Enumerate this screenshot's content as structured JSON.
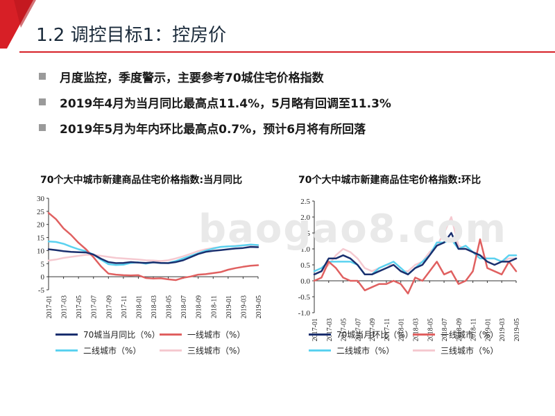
{
  "slide": {
    "title": "1.2 调控目标1：控房价",
    "accent_color": "#d71f26",
    "bullets": [
      "月度监控，季度警示，主要参考70城住宅价格指数",
      "2019年4月为当月同比最高点11.4%，5月略有回调至11.3%",
      "2019年5月为年内环比最高点0.7%，预计6月将有所回落"
    ],
    "watermark": "baogao8.com"
  },
  "chart_data": [
    {
      "type": "line",
      "title": "70个大中城市新建商品住宅价格指数:当月同比",
      "x": [
        "2017-01",
        "2017-02",
        "2017-03",
        "2017-04",
        "2017-05",
        "2017-06",
        "2017-07",
        "2017-08",
        "2017-09",
        "2017-10",
        "2017-11",
        "2017-12",
        "2018-01",
        "2018-02",
        "2018-03",
        "2018-04",
        "2018-05",
        "2018-06",
        "2018-07",
        "2018-08",
        "2018-09",
        "2018-10",
        "2018-11",
        "2018-12",
        "2019-01",
        "2019-02",
        "2019-03",
        "2019-04",
        "2019-05"
      ],
      "tick_labels": [
        "2017-01",
        "2017-03",
        "2017-05",
        "2017-07",
        "2017-09",
        "2017-11",
        "2018-01",
        "2018-03",
        "2018-05",
        "2018-07",
        "2018-09",
        "2018-11",
        "2019-01",
        "2019-03",
        "2019-05"
      ],
      "ylim": [
        -5,
        30
      ],
      "yticks": [
        -5,
        0,
        5,
        10,
        15,
        20,
        25,
        30
      ],
      "series": [
        {
          "name": "70城当月同比（%）",
          "color": "#1a2f6e",
          "values": [
            10.5,
            10.2,
            9.8,
            9.5,
            9.4,
            9.3,
            8.5,
            6.9,
            5.6,
            5.2,
            5.3,
            5.6,
            5.4,
            5.3,
            5.5,
            5.3,
            5.2,
            5.6,
            6.3,
            7.5,
            8.7,
            9.5,
            9.9,
            10.2,
            10.5,
            10.8,
            11.0,
            11.4,
            11.3
          ]
        },
        {
          "name": "一线城市（%）",
          "color": "#e06060",
          "values": [
            24.4,
            22.0,
            18.5,
            16.0,
            13.0,
            10.5,
            7.5,
            4.0,
            1.2,
            0.8,
            0.6,
            0.5,
            0.6,
            -0.5,
            -0.7,
            -0.6,
            -1.0,
            -1.3,
            -0.4,
            0.1,
            0.8,
            1.0,
            1.4,
            1.8,
            2.7,
            3.3,
            3.8,
            4.2,
            4.4
          ]
        },
        {
          "name": "二线城市（%）",
          "color": "#5bd2f0",
          "values": [
            13.5,
            13.3,
            12.6,
            11.5,
            10.5,
            9.8,
            8.5,
            6.5,
            4.8,
            4.5,
            4.6,
            5.3,
            5.5,
            5.0,
            5.5,
            5.2,
            5.3,
            6.0,
            7.0,
            8.0,
            9.0,
            10.0,
            10.8,
            11.4,
            11.6,
            11.7,
            12.0,
            12.3,
            12.1
          ]
        },
        {
          "name": "三线城市（%）",
          "color": "#f5c9d0",
          "values": [
            6.2,
            6.6,
            7.2,
            7.6,
            8.0,
            8.4,
            8.4,
            8.0,
            7.6,
            7.2,
            7.0,
            6.8,
            6.6,
            6.3,
            6.2,
            6.0,
            6.3,
            7.0,
            7.8,
            8.8,
            9.8,
            10.5,
            11.0,
            11.4,
            11.6,
            11.8,
            12.0,
            12.0,
            11.8
          ]
        }
      ]
    },
    {
      "type": "line",
      "title": "70个大中城市新建商品住宅价格指数:环比",
      "x": [
        "2017-01",
        "2017-02",
        "2017-03",
        "2017-04",
        "2017-05",
        "2017-06",
        "2017-07",
        "2017-08",
        "2017-09",
        "2017-10",
        "2017-11",
        "2017-12",
        "2018-01",
        "2018-02",
        "2018-03",
        "2018-04",
        "2018-05",
        "2018-06",
        "2018-07",
        "2018-08",
        "2018-09",
        "2018-10",
        "2018-11",
        "2018-12",
        "2019-01",
        "2019-02",
        "2019-03",
        "2019-04",
        "2019-05"
      ],
      "tick_labels": [
        "2017-01",
        "2017-03",
        "2017-05",
        "2017-07",
        "2017-09",
        "2017-11",
        "2018-01",
        "2018-03",
        "2018-05",
        "2018-07",
        "2018-09",
        "2018-11",
        "2019-01",
        "2019-03",
        "2019-05"
      ],
      "ylim": [
        -1.0,
        2.5
      ],
      "yticks": [
        -1.0,
        -0.5,
        0.0,
        0.5,
        1.0,
        1.5,
        2.0,
        2.5
      ],
      "series": [
        {
          "name": "70城当月环比（%）",
          "color": "#1a2f6e",
          "values": [
            0.2,
            0.3,
            0.7,
            0.7,
            0.8,
            0.7,
            0.5,
            0.2,
            0.2,
            0.3,
            0.4,
            0.5,
            0.3,
            0.2,
            0.4,
            0.5,
            0.8,
            1.1,
            1.2,
            1.5,
            1.0,
            1.0,
            0.9,
            0.8,
            0.6,
            0.5,
            0.6,
            0.6,
            0.7
          ]
        },
        {
          "name": "一线城市（%）",
          "color": "#e06060",
          "values": [
            0.0,
            0.1,
            0.6,
            0.4,
            0.1,
            0.0,
            0.0,
            -0.3,
            -0.2,
            -0.1,
            -0.1,
            0.0,
            -0.1,
            -0.4,
            0.1,
            0.0,
            0.3,
            0.6,
            0.2,
            0.3,
            -0.1,
            0.0,
            0.3,
            1.3,
            0.4,
            0.3,
            0.2,
            0.6,
            0.3
          ]
        },
        {
          "name": "二线城市（%）",
          "color": "#5bd2f0",
          "values": [
            0.3,
            0.4,
            0.6,
            0.6,
            0.6,
            0.6,
            0.5,
            0.2,
            0.2,
            0.4,
            0.5,
            0.6,
            0.4,
            0.2,
            0.4,
            0.6,
            0.8,
            1.2,
            1.2,
            1.3,
            1.0,
            1.1,
            0.9,
            0.7,
            0.7,
            0.7,
            0.6,
            0.8,
            0.8
          ]
        },
        {
          "name": "三线城市（%）",
          "color": "#f5c9d0",
          "values": [
            0.2,
            0.3,
            0.5,
            0.8,
            1.0,
            0.9,
            0.7,
            0.4,
            0.3,
            0.4,
            0.5,
            0.5,
            0.3,
            0.3,
            0.5,
            0.6,
            0.9,
            1.1,
            1.5,
            2.0,
            1.1,
            1.0,
            0.9,
            0.8,
            0.7,
            0.7,
            0.6,
            0.7,
            0.7
          ]
        }
      ]
    }
  ]
}
